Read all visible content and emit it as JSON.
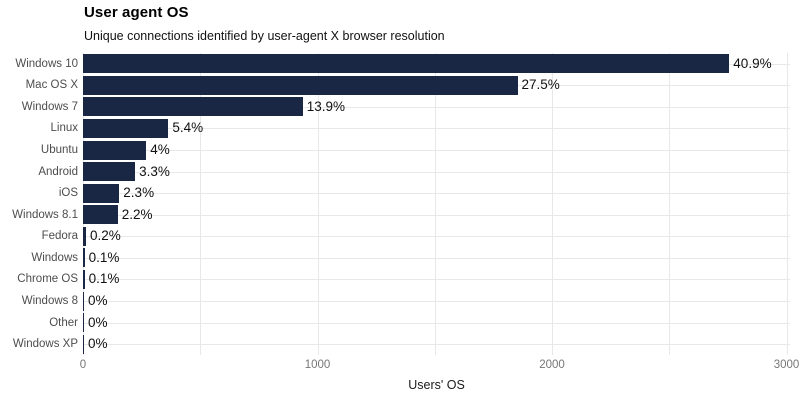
{
  "chart_data": {
    "type": "bar",
    "orientation": "horizontal",
    "title": "User agent OS",
    "subtitle": "Unique connections identified by user-agent X browser resolution",
    "xlabel": "Users' OS",
    "categories": [
      "Windows 10",
      "Mac OS X",
      "Windows 7",
      "Linux",
      "Ubuntu",
      "Android",
      "iOS",
      "Windows 8.1",
      "Fedora",
      "Windows",
      "Chrome OS",
      "Windows 8",
      "Other",
      "Windows XP"
    ],
    "values": [
      2756,
      1853,
      937,
      364,
      270,
      222,
      155,
      148,
      13,
      7,
      7,
      2,
      2,
      2
    ],
    "percent_labels": [
      "40.9%",
      "27.5%",
      "13.9%",
      "5.4%",
      "4%",
      "3.3%",
      "2.3%",
      "2.2%",
      "0.2%",
      "0.1%",
      "0.1%",
      "0%",
      "0%",
      "0%"
    ],
    "x_ticks": [
      "0",
      "1000",
      "2000",
      "3000"
    ],
    "x_tick_values": [
      0,
      1000,
      2000,
      3000
    ],
    "x_minor_gridlines": [
      500,
      1500,
      2500
    ],
    "xlim": [
      0,
      3015
    ],
    "grid": true,
    "legend": "none",
    "colors": {
      "bar": "#1a2744",
      "grid": "#e8e8e8",
      "tick_text": "#777777",
      "category_text": "#4d4d4d",
      "value_text": "#111111",
      "background": "#ffffff"
    }
  }
}
